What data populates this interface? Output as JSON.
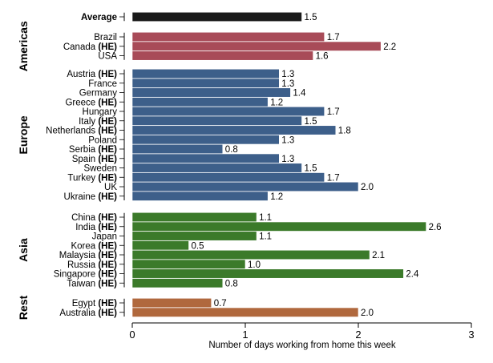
{
  "chart_data": {
    "type": "bar",
    "orientation": "horizontal",
    "xlabel": "Number of days working from home this week",
    "xlim": [
      0,
      3
    ],
    "xticks": [
      "0",
      "1",
      "2",
      "3"
    ],
    "he_marker": "(HE)",
    "groups": [
      {
        "name": "",
        "color": "#1a1a1a",
        "items": [
          {
            "label": "Average",
            "he": false,
            "value": 1.5,
            "bold": true
          }
        ]
      },
      {
        "name": "Americas",
        "color": "#a84b58",
        "items": [
          {
            "label": "Brazil",
            "he": false,
            "value": 1.7
          },
          {
            "label": "Canada",
            "he": true,
            "value": 2.2
          },
          {
            "label": "USA",
            "he": false,
            "value": 1.6
          }
        ]
      },
      {
        "name": "Europe",
        "color": "#3d5f8a",
        "items": [
          {
            "label": "Austria",
            "he": true,
            "value": 1.3
          },
          {
            "label": "France",
            "he": false,
            "value": 1.3
          },
          {
            "label": "Germany",
            "he": false,
            "value": 1.4
          },
          {
            "label": "Greece",
            "he": true,
            "value": 1.2
          },
          {
            "label": "Hungary",
            "he": false,
            "value": 1.7
          },
          {
            "label": "Italy",
            "he": true,
            "value": 1.5
          },
          {
            "label": "Netherlands",
            "he": true,
            "value": 1.8
          },
          {
            "label": "Poland",
            "he": false,
            "value": 1.3
          },
          {
            "label": "Serbia",
            "he": true,
            "value": 0.8
          },
          {
            "label": "Spain",
            "he": true,
            "value": 1.3
          },
          {
            "label": "Sweden",
            "he": false,
            "value": 1.5
          },
          {
            "label": "Turkey",
            "he": true,
            "value": 1.7
          },
          {
            "label": "UK",
            "he": false,
            "value": 2.0
          },
          {
            "label": "Ukraine",
            "he": true,
            "value": 1.2
          }
        ]
      },
      {
        "name": "Asia",
        "color": "#3b7a2a",
        "items": [
          {
            "label": "China",
            "he": true,
            "value": 1.1
          },
          {
            "label": "India",
            "he": true,
            "value": 2.6
          },
          {
            "label": "Japan",
            "he": false,
            "value": 1.1
          },
          {
            "label": "Korea",
            "he": true,
            "value": 0.5
          },
          {
            "label": "Malaysia",
            "he": true,
            "value": 2.1
          },
          {
            "label": "Russia",
            "he": true,
            "value": 1.0
          },
          {
            "label": "Singapore",
            "he": true,
            "value": 2.4
          },
          {
            "label": "Taiwan",
            "he": true,
            "value": 0.8
          }
        ]
      },
      {
        "name": "Rest",
        "color": "#b0683d",
        "items": [
          {
            "label": "Egypt",
            "he": true,
            "value": 0.7
          },
          {
            "label": "Australia",
            "he": true,
            "value": 2.0
          }
        ]
      }
    ]
  }
}
